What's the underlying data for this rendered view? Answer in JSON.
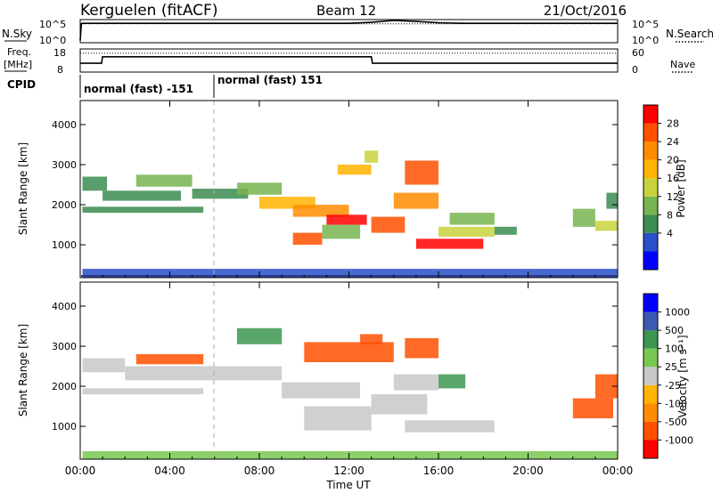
{
  "header": {
    "station": "Kerguelen (fitACF)",
    "beam": "Beam 12",
    "date": "21/Oct/2016"
  },
  "colors": {
    "power_scale": [
      "#0000ff",
      "#2850c8",
      "#3c8c50",
      "#78b450",
      "#c8d23c",
      "#ffb400",
      "#ff8c00",
      "#ff5000",
      "#ff0000"
    ],
    "velocity_scale": [
      "#ff0000",
      "#ff5000",
      "#ff8c00",
      "#ffb400",
      "#c8c8c8",
      "#78c850",
      "#3c9650",
      "#3c5ab4",
      "#0000ff"
    ],
    "trace": "#000000"
  },
  "chart_data": [
    {
      "type": "line",
      "panel": "nsky",
      "left_label": "N.Sky",
      "right_label": "N.Search",
      "left_ticks": [
        "10^5",
        "10^0"
      ],
      "right_ticks": [
        "10^5",
        "10^0"
      ],
      "ylim": [
        0,
        5
      ],
      "x": [
        0,
        0.05,
        0.1,
        5,
        10,
        12,
        13,
        14,
        15,
        16,
        17,
        24
      ],
      "series": [
        {
          "values": [
            0.5,
            4.1,
            4.2,
            4.2,
            4.2,
            4.2,
            4.4,
            4.8,
            4.6,
            4.3,
            4.2,
            4.2
          ],
          "style": "solid"
        },
        {
          "values": [
            4.1,
            4.1,
            4.1,
            4.1,
            4.1,
            4.1,
            4.1,
            4.1,
            4.1,
            4.1,
            4.1,
            4.1
          ],
          "style": "dotted"
        }
      ]
    },
    {
      "type": "line",
      "panel": "freq",
      "left_label": "Freq.",
      "left_unit": "[MHz]",
      "right_label": "Nave",
      "left_ticks": [
        "18",
        "8"
      ],
      "right_ticks": [
        "60",
        "0"
      ],
      "ylim": [
        8,
        18
      ],
      "x": [
        0,
        0.95,
        1.0,
        13.0,
        13.05,
        24
      ],
      "series": [
        {
          "name": "Freq",
          "values": [
            11.8,
            11.8,
            14.6,
            14.6,
            11.8,
            11.8
          ],
          "style": "solid"
        },
        {
          "name": "Nave",
          "values": [
            16.2,
            16.2,
            16.2,
            16.2,
            16.2,
            16.2
          ],
          "style": "dotted"
        }
      ]
    },
    {
      "type": "table",
      "panel": "cpid",
      "label": "CPID",
      "segments": [
        {
          "start": 0,
          "end": 6,
          "text": "normal (fast) -151"
        },
        {
          "start": 6,
          "end": 24,
          "text": "normal (fast) 151"
        }
      ]
    },
    {
      "type": "heatmap",
      "panel": "power",
      "ylabel": "Slant Range [km]",
      "xlim": [
        0,
        24
      ],
      "ylim": [
        180,
        4600
      ],
      "yticks": [
        1000,
        2000,
        3000,
        4000
      ],
      "colorbar": {
        "label": "Power [dB]",
        "ticks": [
          "28",
          "24",
          "20",
          "16",
          "12",
          "8",
          "4"
        ],
        "range": [
          0,
          30
        ]
      },
      "regions": [
        {
          "t0": 0.1,
          "t1": 24,
          "r0": 180,
          "r1": 400,
          "v": 6
        },
        {
          "t0": 0.1,
          "t1": 5.5,
          "r0": 1800,
          "r1": 1950,
          "v": 7
        },
        {
          "t0": 0.1,
          "t1": 1.2,
          "r0": 2350,
          "r1": 2700,
          "v": 8
        },
        {
          "t0": 1.0,
          "t1": 4.5,
          "r0": 2100,
          "r1": 2350,
          "v": 7
        },
        {
          "t0": 2.5,
          "t1": 5.0,
          "r0": 2450,
          "r1": 2750,
          "v": 10
        },
        {
          "t0": 5.0,
          "t1": 7.5,
          "r0": 2150,
          "r1": 2400,
          "v": 9
        },
        {
          "t0": 7.0,
          "t1": 9.0,
          "r0": 2250,
          "r1": 2550,
          "v": 12
        },
        {
          "t0": 8.0,
          "t1": 10.5,
          "r0": 1900,
          "r1": 2200,
          "v": 18
        },
        {
          "t0": 9.5,
          "t1": 12.0,
          "r0": 1700,
          "r1": 2000,
          "v": 22
        },
        {
          "t0": 11.0,
          "t1": 12.8,
          "r0": 1500,
          "r1": 1750,
          "v": 27
        },
        {
          "t0": 9.5,
          "t1": 10.8,
          "r0": 1000,
          "r1": 1300,
          "v": 26
        },
        {
          "t0": 10.8,
          "t1": 12.5,
          "r0": 1150,
          "r1": 1500,
          "v": 12
        },
        {
          "t0": 13.0,
          "t1": 14.5,
          "r0": 1300,
          "r1": 1700,
          "v": 25
        },
        {
          "t0": 14.0,
          "t1": 16.0,
          "r0": 1900,
          "r1": 2300,
          "v": 20
        },
        {
          "t0": 14.5,
          "t1": 16.0,
          "r0": 2500,
          "r1": 3100,
          "v": 24
        },
        {
          "t0": 15.0,
          "t1": 18.0,
          "r0": 900,
          "r1": 1150,
          "v": 29
        },
        {
          "t0": 16.0,
          "t1": 18.5,
          "r0": 1200,
          "r1": 1450,
          "v": 16
        },
        {
          "t0": 16.5,
          "t1": 18.5,
          "r0": 1500,
          "r1": 1800,
          "v": 12
        },
        {
          "t0": 18.5,
          "t1": 19.5,
          "r0": 1250,
          "r1": 1450,
          "v": 7
        },
        {
          "t0": 11.5,
          "t1": 13.0,
          "r0": 2750,
          "r1": 3000,
          "v": 18
        },
        {
          "t0": 12.7,
          "t1": 13.3,
          "r0": 3050,
          "r1": 3350,
          "v": 14
        },
        {
          "t0": 22.0,
          "t1": 23.0,
          "r0": 1450,
          "r1": 1900,
          "v": 10
        },
        {
          "t0": 23.0,
          "t1": 24.0,
          "r0": 1350,
          "r1": 1600,
          "v": 16
        },
        {
          "t0": 23.5,
          "t1": 24.0,
          "r0": 1900,
          "r1": 2300,
          "v": 9
        }
      ]
    },
    {
      "type": "heatmap",
      "panel": "velocity",
      "ylabel": "Slant Range [km]",
      "xlabel": "Time UT",
      "xlim": [
        0,
        24
      ],
      "ylim": [
        180,
        4600
      ],
      "yticks": [
        1000,
        2000,
        3000,
        4000
      ],
      "xtick_labels": [
        "00:00",
        "04:00",
        "08:00",
        "12:00",
        "16:00",
        "20:00",
        "00:00"
      ],
      "colorbar": {
        "label": "Velocity [m s⁻¹]",
        "ticks": [
          "1000",
          "500",
          "100",
          "25",
          "-25",
          "-100",
          "-500",
          "-1000"
        ]
      },
      "regions": [
        {
          "t0": 0.1,
          "t1": 24,
          "r0": 180,
          "r1": 380,
          "v": 40
        },
        {
          "t0": 0.1,
          "t1": 5.5,
          "r0": 1800,
          "r1": 1950,
          "v": 0
        },
        {
          "t0": 0.1,
          "t1": 2.0,
          "r0": 2350,
          "r1": 2700,
          "v": 0
        },
        {
          "t0": 2.0,
          "t1": 9.0,
          "r0": 2150,
          "r1": 2500,
          "v": 0
        },
        {
          "t0": 9.0,
          "t1": 12.5,
          "r0": 1700,
          "r1": 2100,
          "v": 0
        },
        {
          "t0": 10.0,
          "t1": 13.0,
          "r0": 900,
          "r1": 1500,
          "v": 0
        },
        {
          "t0": 13.0,
          "t1": 15.5,
          "r0": 1300,
          "r1": 1800,
          "v": 0
        },
        {
          "t0": 14.5,
          "t1": 18.5,
          "r0": 850,
          "r1": 1150,
          "v": 0
        },
        {
          "t0": 14.0,
          "t1": 16.0,
          "r0": 1900,
          "r1": 2300,
          "v": 0
        },
        {
          "t0": 16.0,
          "t1": 17.2,
          "r0": 1950,
          "r1": 2300,
          "v": 250
        },
        {
          "t0": 2.5,
          "t1": 5.5,
          "r0": 2550,
          "r1": 2800,
          "v": -200
        },
        {
          "t0": 7.0,
          "t1": 9.0,
          "r0": 3050,
          "r1": 3450,
          "v": 250
        },
        {
          "t0": 10.0,
          "t1": 14.0,
          "r0": 2600,
          "r1": 3100,
          "v": -150
        },
        {
          "t0": 12.5,
          "t1": 13.5,
          "r0": 3050,
          "r1": 3300,
          "v": -300
        },
        {
          "t0": 14.5,
          "t1": 16.0,
          "r0": 2700,
          "r1": 3200,
          "v": -250
        },
        {
          "t0": 22.0,
          "t1": 23.8,
          "r0": 1200,
          "r1": 1700,
          "v": -200
        },
        {
          "t0": 23.0,
          "t1": 24.0,
          "r0": 1700,
          "r1": 2300,
          "v": -300
        }
      ]
    }
  ]
}
